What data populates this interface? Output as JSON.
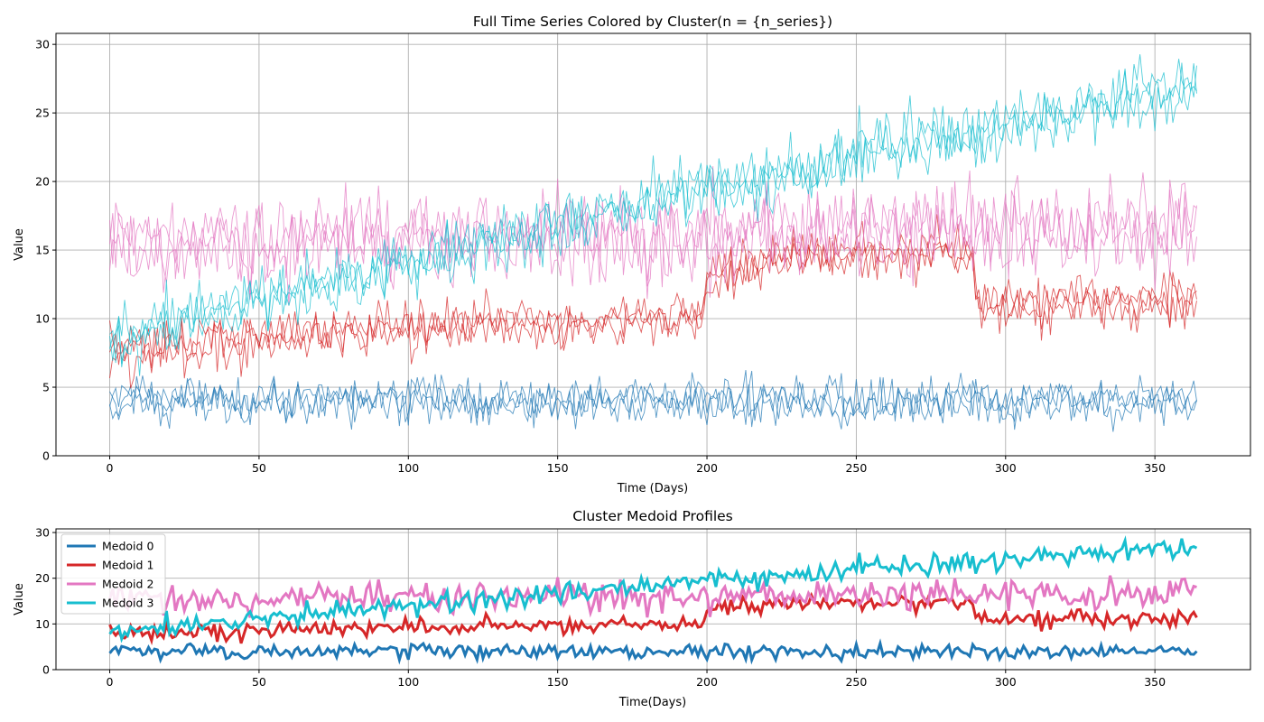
{
  "colors": {
    "cluster0": "#1f77b4",
    "cluster1": "#d62728",
    "cluster2": "#e377c2",
    "cluster3": "#17becf",
    "grid": "#b0b0b0",
    "axis": "#000000"
  },
  "chart_data": [
    {
      "type": "line",
      "title": "Full Time Series Colored by Cluster(n = {n_series})",
      "xlabel": "Time (Days)",
      "ylabel": "Value",
      "xlim": [
        -18,
        382
      ],
      "ylim": [
        0,
        30.8
      ],
      "xticks": [
        0,
        50,
        100,
        150,
        200,
        250,
        300,
        350
      ],
      "yticks": [
        0,
        5,
        10,
        15,
        20,
        25,
        30
      ],
      "grid": true,
      "n_days": 365,
      "series_per_cluster": 3,
      "clusters": [
        {
          "cluster": 0,
          "color_key": "cluster0",
          "knots": [
            [
              0,
              4
            ],
            [
              364,
              4
            ]
          ],
          "noise": 0.8
        },
        {
          "cluster": 1,
          "color_key": "cluster1",
          "knots": [
            [
              0,
              7.5
            ],
            [
              30,
              8.3
            ],
            [
              100,
              9.4
            ],
            [
              199,
              10
            ],
            [
              200,
              13
            ],
            [
              230,
              14.7
            ],
            [
              289,
              14.8
            ],
            [
              290,
              11
            ],
            [
              364,
              11.5
            ]
          ],
          "noise": 0.9
        },
        {
          "cluster": 2,
          "color_key": "cluster2",
          "knots": [
            [
              0,
              15.5
            ],
            [
              364,
              16.5
            ]
          ],
          "noise": 1.6
        },
        {
          "cluster": 3,
          "color_key": "cluster3",
          "knots": [
            [
              0,
              8.5
            ],
            [
              100,
              14
            ],
            [
              200,
              19.5
            ],
            [
              249,
              21.5
            ],
            [
              250,
              22
            ],
            [
              300,
              24
            ],
            [
              364,
              27
            ]
          ],
          "noise": 1.1
        }
      ]
    },
    {
      "type": "line",
      "title": "Cluster Medoid Profiles",
      "xlabel": "Time(Days)",
      "ylabel": "Value",
      "xlim": [
        -18,
        382
      ],
      "ylim": [
        0,
        30.8
      ],
      "xticks": [
        0,
        50,
        100,
        150,
        200,
        250,
        300,
        350
      ],
      "yticks": [
        0,
        10,
        20,
        30
      ],
      "grid": true,
      "legend": "top-left",
      "series": [
        {
          "name": "Medoid 0",
          "color_key": "cluster0",
          "cluster": 0
        },
        {
          "name": "Medoid 1",
          "color_key": "cluster1",
          "cluster": 1
        },
        {
          "name": "Medoid 2",
          "color_key": "cluster2",
          "cluster": 2
        },
        {
          "name": "Medoid 3",
          "color_key": "cluster3",
          "cluster": 3
        }
      ]
    }
  ]
}
